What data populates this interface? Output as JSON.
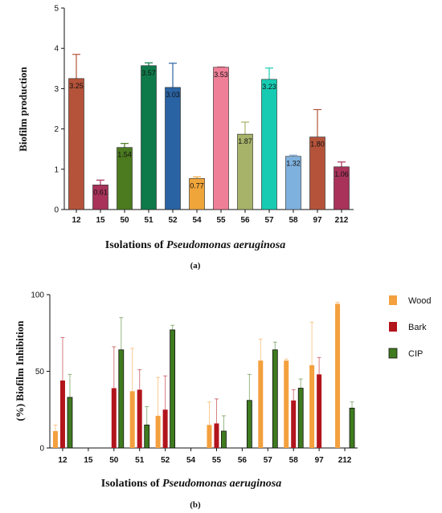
{
  "chart_data": [
    {
      "type": "bar",
      "panel_label": "(a)",
      "categories": [
        "12",
        "15",
        "50",
        "51",
        "52",
        "54",
        "55",
        "56",
        "57",
        "58",
        "97",
        "212"
      ],
      "values": [
        3.25,
        0.61,
        1.54,
        3.57,
        3.03,
        0.77,
        3.53,
        1.87,
        3.23,
        1.32,
        1.8,
        1.06
      ],
      "value_labels": [
        "3.25",
        "0.61",
        "1.54",
        "3.57",
        "3.03",
        "0.77",
        "3.53",
        "1.87",
        "3.23",
        "1.32",
        "1.80",
        "1.06"
      ],
      "errors": [
        0.6,
        0.12,
        0.1,
        0.07,
        0.6,
        0.04,
        0.01,
        0.3,
        0.28,
        0.03,
        0.68,
        0.12
      ],
      "colors": [
        "#b5533a",
        "#a8325a",
        "#4b7a1f",
        "#0e7a4a",
        "#2a63a3",
        "#f0a53a",
        "#ef7f97",
        "#a6b369",
        "#17cbb2",
        "#7fb1de",
        "#b5533a",
        "#a8325a"
      ],
      "ylabel": "Biofilm production",
      "xlabel_prefix": "Isolations of ",
      "xlabel_italic": "Pseudomonas aeruginosa",
      "ylim": [
        0,
        5
      ],
      "yticks": [
        "0",
        "1",
        "2",
        "3",
        "4",
        "5"
      ]
    },
    {
      "type": "bar",
      "panel_label": "(b)",
      "categories": [
        "12",
        "15",
        "50",
        "51",
        "52",
        "54",
        "55",
        "56",
        "57",
        "58",
        "97",
        "212"
      ],
      "series": [
        {
          "name": "Wood",
          "color": "#f4a03e",
          "values": [
            11,
            null,
            null,
            37,
            21,
            null,
            15,
            null,
            57,
            57,
            54,
            94
          ],
          "errors": [
            4,
            null,
            null,
            28,
            25,
            null,
            15,
            null,
            14,
            1,
            28,
            1
          ]
        },
        {
          "name": "Bark",
          "color": "#b2141c",
          "values": [
            44,
            null,
            39,
            38,
            25,
            null,
            16,
            null,
            null,
            31,
            48,
            null
          ],
          "errors": [
            28,
            null,
            27,
            13,
            22,
            null,
            16,
            null,
            null,
            7,
            11,
            null
          ]
        },
        {
          "name": "CIP",
          "color": "#3f7b1f",
          "values": [
            33,
            null,
            64,
            15,
            77,
            null,
            11,
            31,
            64,
            39,
            null,
            26
          ],
          "errors": [
            15,
            null,
            21,
            12,
            3,
            null,
            10,
            17,
            5,
            6,
            null,
            4
          ]
        }
      ],
      "ylabel": "(%) Biofilm Inhibition",
      "xlabel_prefix": "Isolations of ",
      "xlabel_italic": "Pseudomonas aeruginosa",
      "ylim": [
        0,
        100
      ],
      "yticks": [
        "0",
        "50",
        "100"
      ],
      "legend_placement": "right"
    }
  ]
}
